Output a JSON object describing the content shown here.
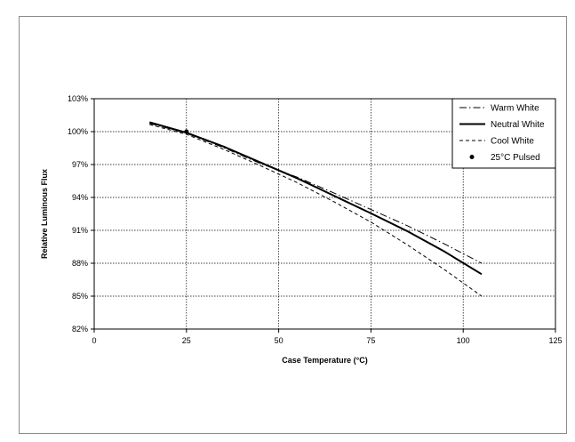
{
  "chart_data": {
    "type": "line",
    "title": "",
    "xlabel": "Case Temperature (°C)",
    "ylabel": "Relative Luminous Flux",
    "xlim": [
      0,
      125
    ],
    "ylim": [
      82,
      103
    ],
    "x_ticks": [
      0,
      25,
      50,
      75,
      100,
      125
    ],
    "x_tick_labels": [
      "0",
      "25",
      "50",
      "75",
      "100",
      "125"
    ],
    "y_ticks": [
      82,
      85,
      88,
      91,
      94,
      97,
      100,
      103
    ],
    "y_tick_labels": [
      "82%",
      "85%",
      "88%",
      "91%",
      "94%",
      "97%",
      "100%",
      "103%"
    ],
    "grid": true,
    "legend_position": "top-right",
    "series": [
      {
        "name": "Warm White",
        "style": "dash-dot",
        "color": "#000000",
        "x": [
          15,
          25,
          35,
          45,
          55,
          65,
          75,
          85,
          95,
          105
        ],
        "y": [
          100.75,
          99.85,
          98.55,
          97.1,
          95.85,
          94.4,
          92.9,
          91.4,
          89.75,
          88.0
        ]
      },
      {
        "name": "Neutral White",
        "style": "solid",
        "color": "#000000",
        "x": [
          15,
          25,
          35,
          45,
          55,
          65,
          75,
          85,
          95,
          105
        ],
        "y": [
          100.85,
          99.9,
          98.65,
          97.2,
          95.75,
          94.15,
          92.55,
          90.9,
          89.05,
          87.0
        ]
      },
      {
        "name": "Cool White",
        "style": "dashed",
        "color": "#000000",
        "x": [
          15,
          25,
          35,
          45,
          55,
          65,
          75,
          85,
          95,
          105
        ],
        "y": [
          100.65,
          99.75,
          98.4,
          96.9,
          95.35,
          93.6,
          91.75,
          89.65,
          87.4,
          85.0
        ]
      },
      {
        "name": "25°C Pulsed",
        "style": "marker",
        "color": "#000000",
        "x": [
          25
        ],
        "y": [
          100
        ]
      }
    ]
  }
}
